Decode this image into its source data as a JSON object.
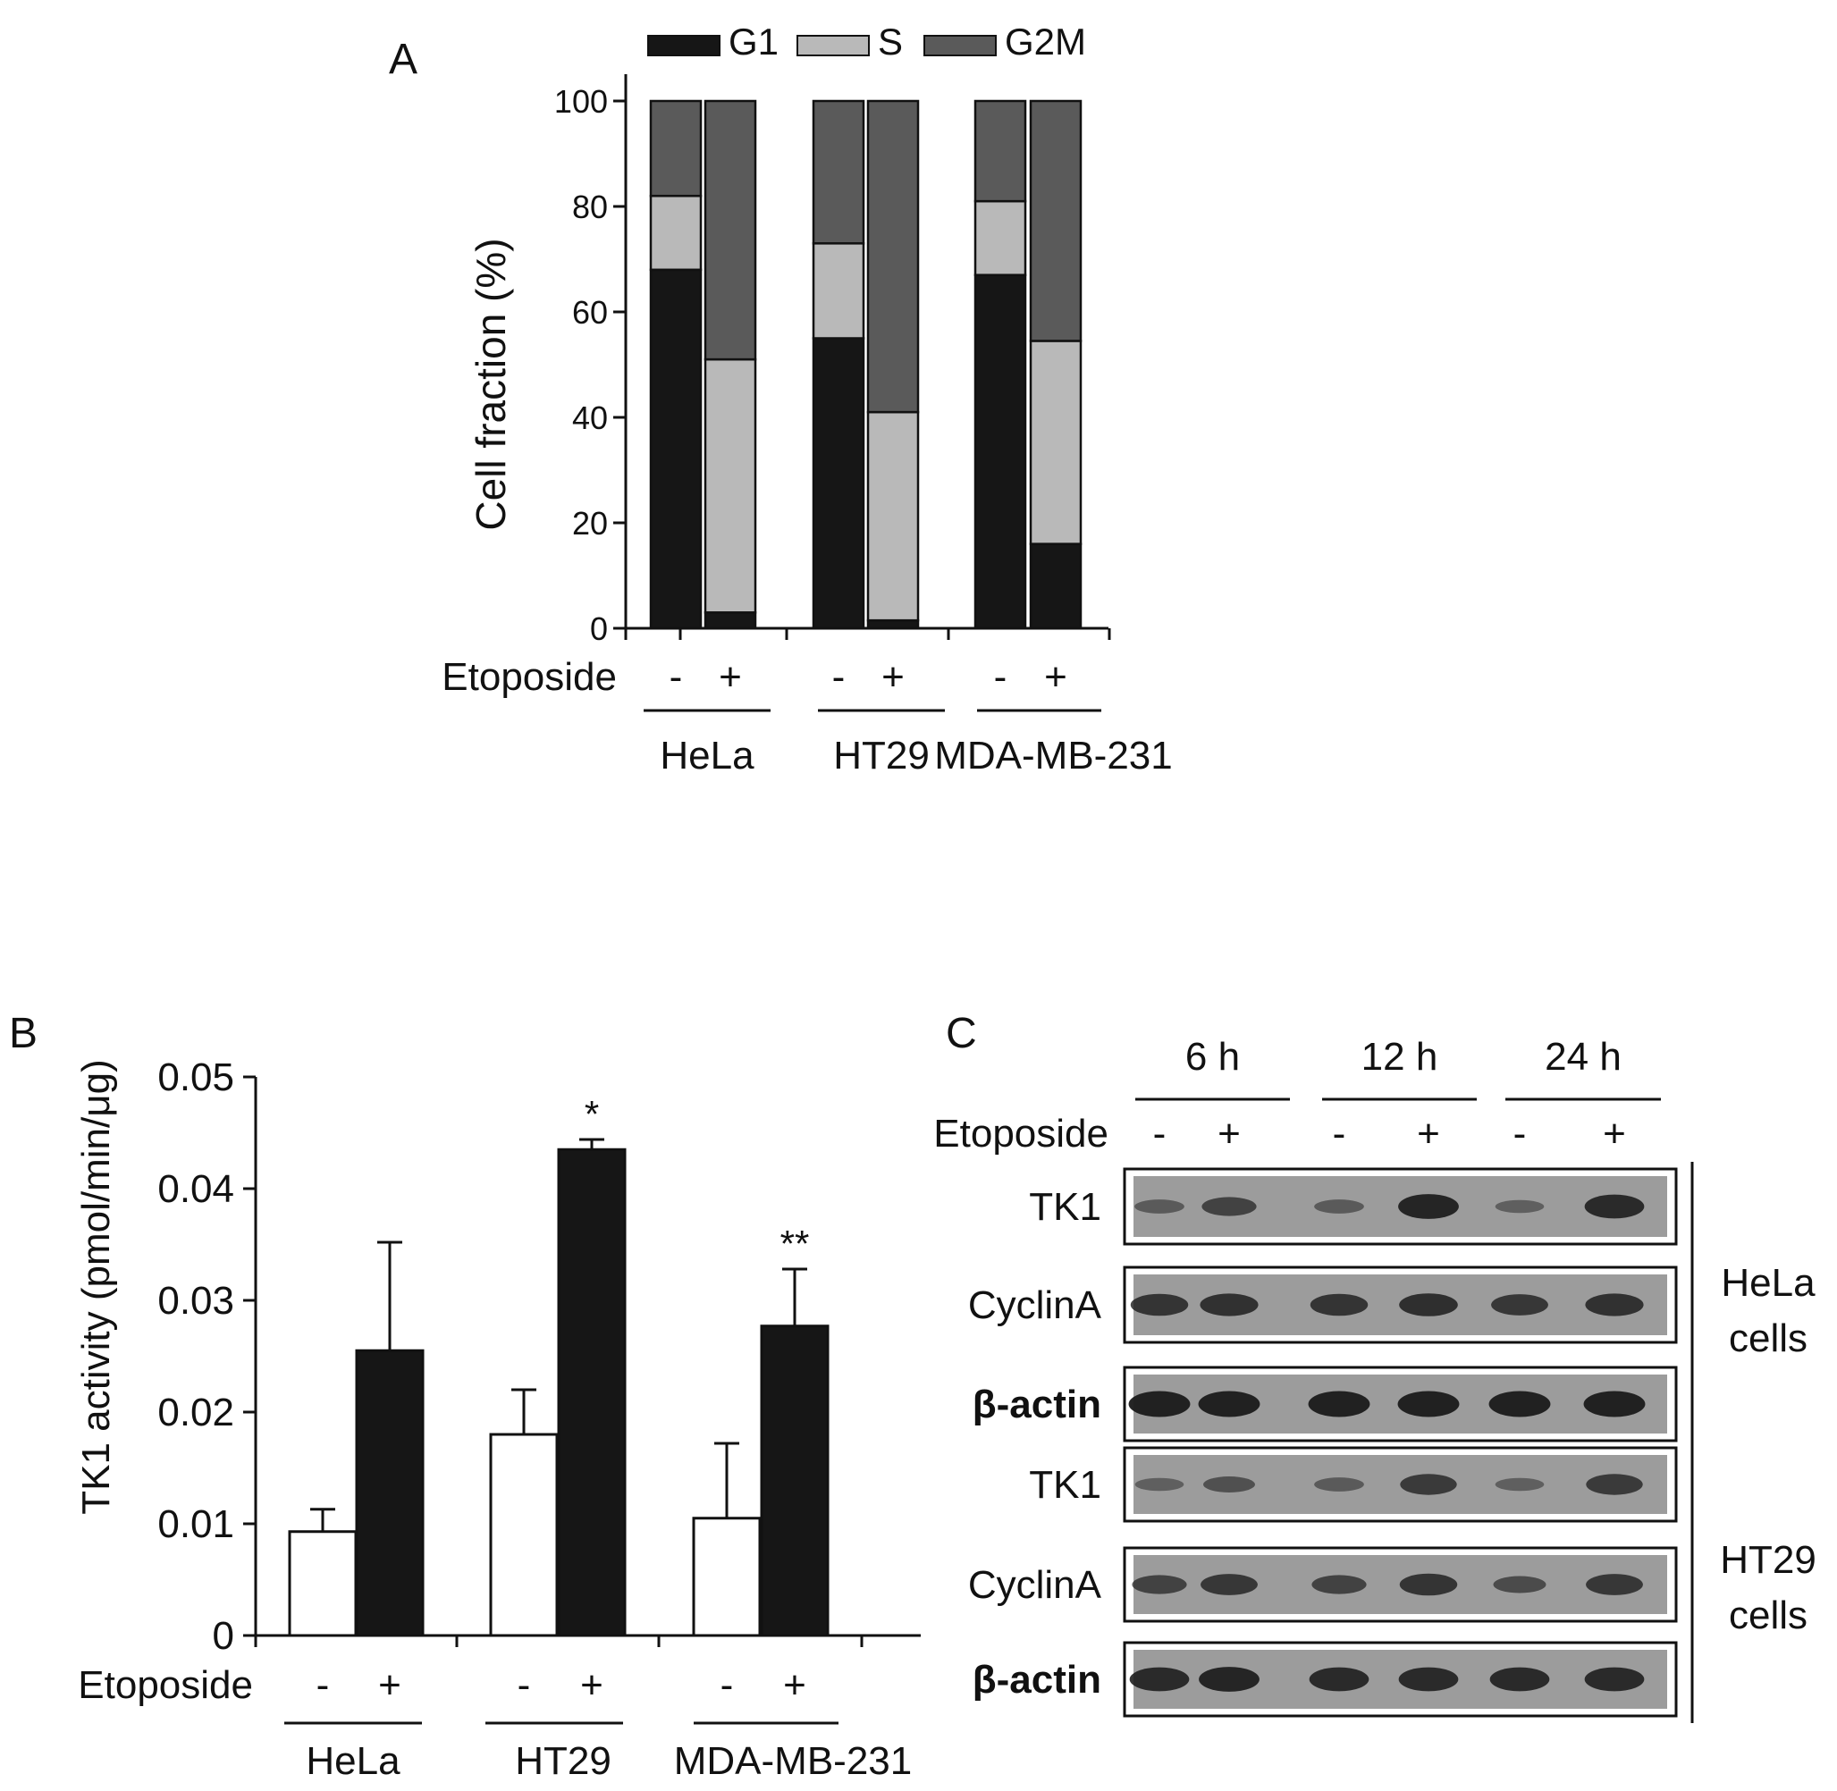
{
  "colors": {
    "g1": "#161616",
    "s": "#b9b9b9",
    "g2m": "#5a5a5a",
    "control_bar": "#ffffff",
    "treated_bar": "#161616",
    "blot_bg": "#9c9c9c",
    "band": "#1c1c1c"
  },
  "chart_data": [
    {
      "panel": "A",
      "type": "bar",
      "stacked": true,
      "treatment_label": "Etoposide",
      "ylabel": "Cell fraction (%)",
      "ylim": [
        0,
        100
      ],
      "yticks": [
        "0",
        "20",
        "40",
        "60",
        "80",
        "100"
      ],
      "groups": [
        "HeLa",
        "HT29",
        "MDA-MB-231"
      ],
      "categories": [
        "-",
        "+",
        "-",
        "+",
        "-",
        "+"
      ],
      "legend_position": "top",
      "series": [
        {
          "name": "G1",
          "values": [
            68,
            3,
            55,
            1.5,
            67,
            16
          ]
        },
        {
          "name": "S",
          "values": [
            14,
            48,
            18,
            39.5,
            14,
            38.5
          ]
        },
        {
          "name": "G2M",
          "values": [
            18,
            49,
            27,
            59,
            19,
            45.5
          ]
        }
      ]
    },
    {
      "panel": "B",
      "type": "bar",
      "treatment_label": "Etoposide",
      "ylabel": "TK1 activity (pmol/min/μg)",
      "ylim": [
        0,
        0.05
      ],
      "yticks": [
        "0",
        "0.01",
        "0.02",
        "0.03",
        "0.04",
        "0.05"
      ],
      "groups": [
        "HeLa",
        "HT29",
        "MDA-MB-231"
      ],
      "categories": [
        "-",
        "+",
        "-",
        "+",
        "-",
        "+"
      ],
      "values": [
        0.0093,
        0.0255,
        0.018,
        0.0435,
        0.0105,
        0.0277
      ],
      "errors": [
        0.002,
        0.0097,
        0.004,
        0.0009,
        0.0067,
        0.0051
      ],
      "annotations": [
        "",
        "",
        "",
        "*",
        "",
        "**"
      ]
    }
  ],
  "blot": {
    "panel": "C",
    "treatment_label": "Etoposide",
    "timepoints": [
      "6 h",
      "12 h",
      "24 h"
    ],
    "lanes": [
      "-",
      "+",
      "-",
      "+",
      "-",
      "+"
    ],
    "blocks": [
      {
        "cells": "HeLa",
        "cells_label": [
          "HeLa",
          "cells"
        ],
        "rows": [
          {
            "label": "TK1",
            "bold": false,
            "intensity": [
              0.35,
              0.6,
              0.35,
              0.9,
              0.3,
              0.85
            ]
          },
          {
            "label": "CyclinA",
            "bold": false,
            "intensity": [
              0.75,
              0.78,
              0.75,
              0.8,
              0.72,
              0.78
            ]
          },
          {
            "label": "β-actin",
            "bold": true,
            "intensity": [
              0.95,
              0.95,
              0.95,
              0.95,
              0.95,
              0.95
            ]
          }
        ]
      },
      {
        "cells": "HT29",
        "cells_label": [
          "HT29",
          "cells"
        ],
        "rows": [
          {
            "label": "TK1",
            "bold": false,
            "intensity": [
              0.3,
              0.45,
              0.35,
              0.7,
              0.3,
              0.7
            ]
          },
          {
            "label": "CyclinA",
            "bold": false,
            "intensity": [
              0.6,
              0.72,
              0.6,
              0.75,
              0.5,
              0.72
            ]
          },
          {
            "label": "β-actin",
            "bold": true,
            "intensity": [
              0.85,
              0.9,
              0.85,
              0.85,
              0.85,
              0.85
            ]
          }
        ]
      }
    ]
  },
  "panel_labels": {
    "a": "A",
    "b": "B",
    "c": "C"
  }
}
